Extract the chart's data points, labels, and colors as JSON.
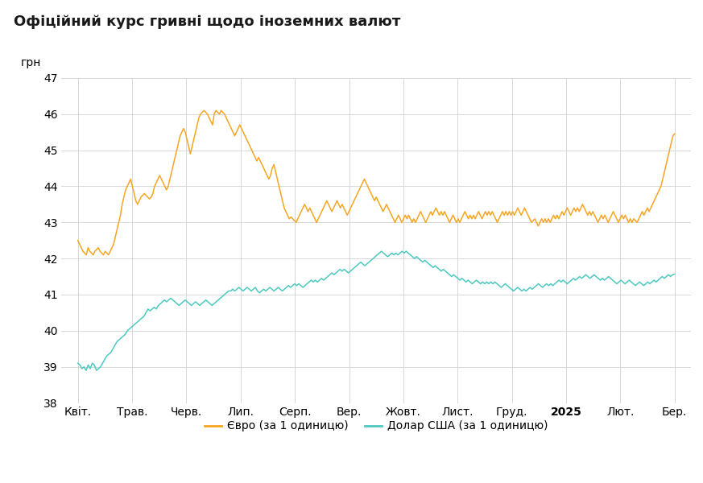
{
  "title": "Офіційний курс гривні щодо іноземних валют",
  "ylabel": "грн",
  "ylim": [
    38,
    47
  ],
  "yticks": [
    38,
    39,
    40,
    41,
    42,
    43,
    44,
    45,
    46,
    47
  ],
  "xtick_labels": [
    "Квіт.",
    "Трав.",
    "Черв.",
    "Лип.",
    "Серп.",
    "Вер.",
    "Жовт.",
    "Лист.",
    "Груд.",
    "2025",
    "Лют.",
    "Бер."
  ],
  "euro_color": "#F5A623",
  "usd_color": "#4EC9C0",
  "background_color": "#ffffff",
  "grid_color": "#d8d8d8",
  "legend_euro": "Євро (за 1 одиницю)",
  "legend_usd": "Долар США (за 1 одиницю)",
  "title_fontsize": 13,
  "euro_data": [
    42.5,
    42.4,
    42.3,
    42.2,
    42.15,
    42.1,
    42.3,
    42.2,
    42.15,
    42.1,
    42.2,
    42.25,
    42.3,
    42.2,
    42.15,
    42.1,
    42.2,
    42.15,
    42.1,
    42.2,
    42.3,
    42.4,
    42.6,
    42.8,
    43.0,
    43.2,
    43.5,
    43.7,
    43.9,
    44.0,
    44.1,
    44.2,
    44.0,
    43.8,
    43.6,
    43.5,
    43.6,
    43.7,
    43.75,
    43.8,
    43.75,
    43.7,
    43.65,
    43.7,
    43.8,
    44.0,
    44.1,
    44.2,
    44.3,
    44.2,
    44.1,
    44.0,
    43.9,
    44.0,
    44.2,
    44.4,
    44.6,
    44.8,
    45.0,
    45.2,
    45.4,
    45.5,
    45.6,
    45.5,
    45.3,
    45.1,
    44.9,
    45.1,
    45.3,
    45.5,
    45.7,
    45.9,
    46.0,
    46.05,
    46.1,
    46.05,
    46.0,
    45.9,
    45.8,
    45.7,
    46.0,
    46.1,
    46.05,
    46.0,
    46.1,
    46.05,
    46.0,
    45.9,
    45.8,
    45.7,
    45.6,
    45.5,
    45.4,
    45.5,
    45.6,
    45.7,
    45.6,
    45.5,
    45.4,
    45.3,
    45.2,
    45.1,
    45.0,
    44.9,
    44.8,
    44.7,
    44.8,
    44.7,
    44.6,
    44.5,
    44.4,
    44.3,
    44.2,
    44.3,
    44.5,
    44.6,
    44.4,
    44.2,
    44.0,
    43.8,
    43.6,
    43.4,
    43.3,
    43.2,
    43.1,
    43.15,
    43.1,
    43.05,
    43.0,
    43.1,
    43.2,
    43.3,
    43.4,
    43.5,
    43.4,
    43.3,
    43.4,
    43.3,
    43.2,
    43.1,
    43.0,
    43.1,
    43.2,
    43.3,
    43.4,
    43.5,
    43.6,
    43.5,
    43.4,
    43.3,
    43.4,
    43.5,
    43.6,
    43.5,
    43.4,
    43.5,
    43.4,
    43.3,
    43.2,
    43.3,
    43.4,
    43.5,
    43.6,
    43.7,
    43.8,
    43.9,
    44.0,
    44.1,
    44.2,
    44.1,
    44.0,
    43.9,
    43.8,
    43.7,
    43.6,
    43.7,
    43.6,
    43.5,
    43.4,
    43.3,
    43.4,
    43.5,
    43.4,
    43.3,
    43.2,
    43.1,
    43.0,
    43.1,
    43.2,
    43.1,
    43.0,
    43.1,
    43.2,
    43.1,
    43.2,
    43.1,
    43.0,
    43.1,
    43.0,
    43.1,
    43.2,
    43.3,
    43.2,
    43.1,
    43.0,
    43.1,
    43.2,
    43.3,
    43.2,
    43.3,
    43.4,
    43.3,
    43.2,
    43.3,
    43.2,
    43.3,
    43.2,
    43.1,
    43.0,
    43.1,
    43.2,
    43.1,
    43.0,
    43.1,
    43.0,
    43.1,
    43.2,
    43.3,
    43.2,
    43.1,
    43.2,
    43.1,
    43.2,
    43.1,
    43.2,
    43.3,
    43.2,
    43.1,
    43.2,
    43.3,
    43.2,
    43.3,
    43.2,
    43.3,
    43.2,
    43.1,
    43.0,
    43.1,
    43.2,
    43.3,
    43.2,
    43.3,
    43.2,
    43.3,
    43.2,
    43.3,
    43.2,
    43.3,
    43.4,
    43.3,
    43.2,
    43.3,
    43.4,
    43.3,
    43.2,
    43.1,
    43.0,
    43.05,
    43.1,
    43.0,
    42.9,
    43.0,
    43.1,
    43.0,
    43.1,
    43.0,
    43.1,
    43.0,
    43.1,
    43.2,
    43.1,
    43.2,
    43.1,
    43.2,
    43.3,
    43.2,
    43.3,
    43.4,
    43.3,
    43.2,
    43.3,
    43.4,
    43.3,
    43.4,
    43.3,
    43.4,
    43.5,
    43.4,
    43.3,
    43.2,
    43.3,
    43.2,
    43.3,
    43.2,
    43.1,
    43.0,
    43.1,
    43.2,
    43.1,
    43.2,
    43.1,
    43.0,
    43.1,
    43.2,
    43.3,
    43.2,
    43.1,
    43.0,
    43.1,
    43.2,
    43.1,
    43.2,
    43.1,
    43.0,
    43.1,
    43.0,
    43.1,
    43.05,
    43.0,
    43.1,
    43.2,
    43.3,
    43.2,
    43.3,
    43.4,
    43.3,
    43.4,
    43.5,
    43.6,
    43.7,
    43.8,
    43.9,
    44.0,
    44.2,
    44.4,
    44.6,
    44.8,
    45.0,
    45.2,
    45.4,
    45.45
  ],
  "usd_data": [
    39.1,
    39.05,
    38.95,
    39.0,
    38.9,
    39.05,
    38.95,
    39.1,
    39.05,
    38.9,
    38.95,
    39.0,
    39.1,
    39.2,
    39.3,
    39.35,
    39.4,
    39.5,
    39.6,
    39.7,
    39.75,
    39.8,
    39.85,
    39.9,
    40.0,
    40.05,
    40.1,
    40.15,
    40.2,
    40.25,
    40.3,
    40.35,
    40.4,
    40.5,
    40.6,
    40.55,
    40.6,
    40.65,
    40.6,
    40.7,
    40.75,
    40.8,
    40.85,
    40.8,
    40.85,
    40.9,
    40.85,
    40.8,
    40.75,
    40.7,
    40.75,
    40.8,
    40.85,
    40.8,
    40.75,
    40.7,
    40.75,
    40.8,
    40.75,
    40.7,
    40.75,
    40.8,
    40.85,
    40.8,
    40.75,
    40.7,
    40.75,
    40.8,
    40.85,
    40.9,
    40.95,
    41.0,
    41.05,
    41.1,
    41.1,
    41.15,
    41.1,
    41.15,
    41.2,
    41.15,
    41.1,
    41.15,
    41.2,
    41.15,
    41.1,
    41.15,
    41.2,
    41.1,
    41.05,
    41.1,
    41.15,
    41.1,
    41.15,
    41.2,
    41.15,
    41.1,
    41.15,
    41.2,
    41.15,
    41.1,
    41.15,
    41.2,
    41.25,
    41.2,
    41.25,
    41.3,
    41.25,
    41.3,
    41.25,
    41.2,
    41.25,
    41.3,
    41.35,
    41.4,
    41.35,
    41.4,
    41.35,
    41.4,
    41.45,
    41.4,
    41.45,
    41.5,
    41.55,
    41.6,
    41.55,
    41.6,
    41.65,
    41.7,
    41.65,
    41.7,
    41.65,
    41.6,
    41.65,
    41.7,
    41.75,
    41.8,
    41.85,
    41.9,
    41.85,
    41.8,
    41.85,
    41.9,
    41.95,
    42.0,
    42.05,
    42.1,
    42.15,
    42.2,
    42.15,
    42.1,
    42.05,
    42.1,
    42.15,
    42.1,
    42.15,
    42.1,
    42.15,
    42.2,
    42.15,
    42.2,
    42.15,
    42.1,
    42.05,
    42.0,
    42.05,
    42.0,
    41.95,
    41.9,
    41.95,
    41.9,
    41.85,
    41.8,
    41.75,
    41.8,
    41.75,
    41.7,
    41.65,
    41.7,
    41.65,
    41.6,
    41.55,
    41.5,
    41.55,
    41.5,
    41.45,
    41.4,
    41.45,
    41.4,
    41.35,
    41.4,
    41.35,
    41.3,
    41.35,
    41.4,
    41.35,
    41.3,
    41.35,
    41.3,
    41.35,
    41.3,
    41.35,
    41.3,
    41.35,
    41.3,
    41.25,
    41.2,
    41.25,
    41.3,
    41.25,
    41.2,
    41.15,
    41.1,
    41.15,
    41.2,
    41.15,
    41.1,
    41.15,
    41.1,
    41.15,
    41.2,
    41.15,
    41.2,
    41.25,
    41.3,
    41.25,
    41.2,
    41.25,
    41.3,
    41.25,
    41.3,
    41.25,
    41.3,
    41.35,
    41.4,
    41.35,
    41.4,
    41.35,
    41.3,
    41.35,
    41.4,
    41.45,
    41.4,
    41.45,
    41.5,
    41.45,
    41.5,
    41.55,
    41.5,
    41.45,
    41.5,
    41.55,
    41.5,
    41.45,
    41.4,
    41.45,
    41.4,
    41.45,
    41.5,
    41.45,
    41.4,
    41.35,
    41.3,
    41.35,
    41.4,
    41.35,
    41.3,
    41.35,
    41.4,
    41.35,
    41.3,
    41.25,
    41.3,
    41.35,
    41.3,
    41.25,
    41.3,
    41.35,
    41.3,
    41.35,
    41.4,
    41.35,
    41.4,
    41.45,
    41.5,
    41.45,
    41.5,
    41.55,
    41.5,
    41.55,
    41.57
  ]
}
